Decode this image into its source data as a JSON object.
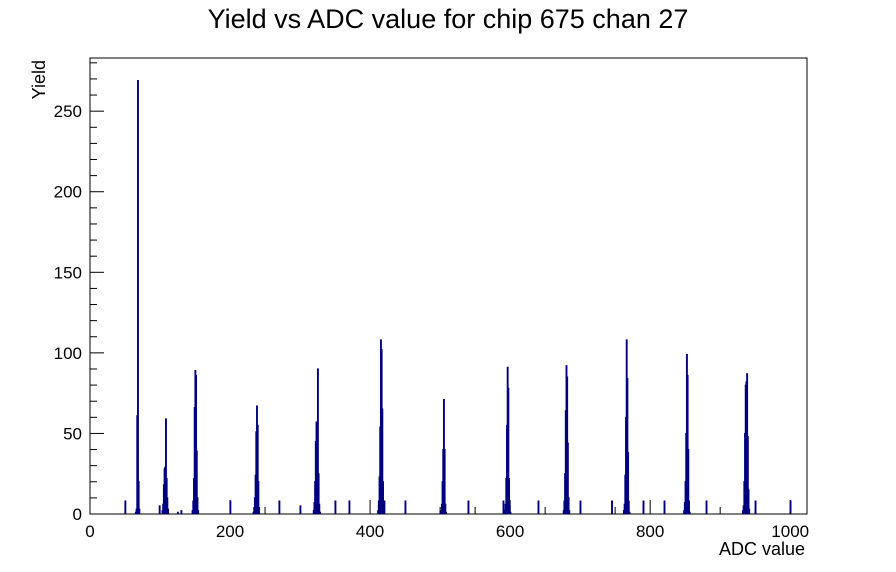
{
  "chart_data": {
    "type": "bar",
    "title": "Yield vs ADC value for chip 675 chan 27",
    "xlabel": "ADC value",
    "ylabel": "Yield",
    "xlim": [
      0,
      1024
    ],
    "ylim": [
      0,
      283
    ],
    "x_ticks": [
      0,
      200,
      400,
      600,
      800,
      1000
    ],
    "y_ticks": [
      0,
      50,
      100,
      150,
      200,
      250
    ],
    "line_color": "#00007f",
    "series": [
      {
        "x": [
          50,
          65,
          66,
          67,
          68,
          69,
          70,
          99,
          103,
          104,
          105,
          106,
          107,
          108,
          109,
          110,
          111,
          125,
          130,
          146,
          147,
          148,
          149,
          150,
          151,
          152,
          153,
          154,
          200,
          233,
          234,
          235,
          236,
          237,
          238,
          239,
          240,
          241,
          270,
          300,
          319,
          320,
          321,
          322,
          323,
          324,
          325,
          326,
          327,
          328,
          350,
          370,
          411,
          412,
          413,
          414,
          415,
          416,
          417,
          418,
          419,
          420,
          450,
          500,
          502,
          503,
          504,
          505,
          506,
          507,
          508,
          540,
          590,
          592,
          593,
          594,
          595,
          596,
          597,
          598,
          599,
          600,
          640,
          676,
          677,
          678,
          679,
          680,
          681,
          682,
          683,
          684,
          700,
          745,
          762,
          763,
          764,
          765,
          766,
          767,
          768,
          769,
          770,
          790,
          820,
          848,
          849,
          850,
          851,
          852,
          853,
          854,
          855,
          856,
          880,
          932,
          933,
          934,
          935,
          936,
          937,
          938,
          939,
          940,
          941,
          950,
          1000
        ],
        "y": [
          8,
          1,
          3,
          61,
          269,
          20,
          3,
          5,
          2,
          6,
          18,
          28,
          29,
          59,
          22,
          10,
          3,
          1,
          2,
          2,
          8,
          22,
          66,
          89,
          86,
          39,
          10,
          2,
          8,
          1,
          4,
          10,
          24,
          51,
          67,
          55,
          20,
          4,
          8,
          5,
          2,
          7,
          20,
          45,
          57,
          56,
          90,
          25,
          6,
          1,
          8,
          8,
          2,
          8,
          23,
          54,
          108,
          102,
          65,
          20,
          4,
          8,
          8,
          2,
          6,
          20,
          40,
          71,
          40,
          6,
          1,
          8,
          8,
          2,
          6,
          22,
          55,
          91,
          78,
          22,
          5,
          1,
          8,
          2,
          8,
          25,
          64,
          92,
          85,
          44,
          10,
          2,
          8,
          8,
          2,
          6,
          24,
          60,
          108,
          84,
          38,
          8,
          1,
          8,
          8,
          2,
          7,
          20,
          50,
          99,
          86,
          40,
          8,
          1,
          8,
          2,
          5,
          20,
          50,
          80,
          82,
          87,
          48,
          15,
          3,
          8,
          8
        ]
      }
    ]
  }
}
